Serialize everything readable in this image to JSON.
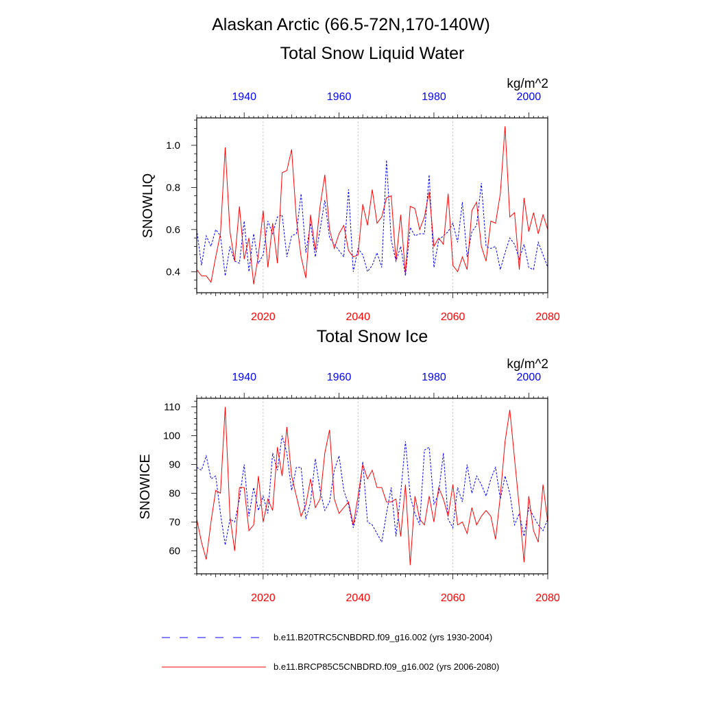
{
  "figure": {
    "title": "Alaskan Arctic (66.5-72N,170-140W)",
    "legend": [
      {
        "label": "b.e11.B20TRC5CNBDRD.f09_g16.002 (yrs 1930-2004)",
        "color": "#0000ff",
        "style": "dashed"
      },
      {
        "label": "b.e11.BRCP85C5CNBDRD.f09_g16.002 (yrs 2006-2080)",
        "color": "#ff0000",
        "style": "solid"
      }
    ],
    "colors": {
      "historical": "#0000ff",
      "future": "#ff0000",
      "frame": "#000000",
      "grid": "#b0b0b0"
    }
  },
  "chart_data": [
    {
      "type": "line",
      "title": "Total Snow Liquid Water",
      "units": "kg/m^2",
      "ylabel": "SNOWLIQ",
      "ylim": [
        0.3,
        1.13
      ],
      "yticks": [
        0.4,
        0.6,
        0.8,
        1.0
      ],
      "ytick_labels": [
        "0.4",
        "0.6",
        "0.8",
        "1.0"
      ],
      "bottom_axis": {
        "xlim": [
          2006,
          2080
        ],
        "ticks": [
          2020,
          2040,
          2060,
          2080
        ],
        "tick_labels": [
          "2020",
          "2040",
          "2060",
          "2080"
        ]
      },
      "top_axis": {
        "xlim": [
          1930,
          2004
        ],
        "ticks": [
          1940,
          1960,
          1980,
          2000
        ],
        "tick_labels": [
          "1940",
          "1960",
          "1980",
          "2000"
        ]
      },
      "grid_x": [
        2020,
        2040,
        2060
      ],
      "series": [
        {
          "name": "b.e11.B20TRC5CNBDRD.f09_g16.002 (yrs 1930-2004)",
          "axis": "top",
          "x_start": 1930,
          "style": "dashed",
          "values": [
            0.6,
            0.43,
            0.57,
            0.52,
            0.6,
            0.57,
            0.38,
            0.52,
            0.45,
            0.44,
            0.64,
            0.4,
            0.58,
            0.44,
            0.48,
            0.64,
            0.58,
            0.66,
            0.67,
            0.47,
            0.57,
            0.58,
            0.77,
            0.49,
            0.63,
            0.47,
            0.6,
            0.74,
            0.56,
            0.53,
            0.5,
            0.47,
            0.79,
            0.4,
            0.51,
            0.48,
            0.4,
            0.43,
            0.49,
            0.42,
            0.93,
            0.55,
            0.45,
            0.52,
            0.38,
            0.61,
            0.57,
            0.58,
            0.58,
            0.86,
            0.42,
            0.55,
            0.57,
            0.59,
            0.63,
            0.54,
            0.73,
            0.47,
            0.59,
            0.62,
            0.82,
            0.52,
            0.51,
            0.52,
            0.41,
            0.49,
            0.56,
            0.53,
            0.46,
            0.53,
            0.42,
            0.41,
            0.54,
            0.48,
            0.42
          ]
        },
        {
          "name": "b.e11.BRCP85C5CNBDRD.f09_g16.002 (yrs 2006-2080)",
          "axis": "bottom",
          "x_start": 2006,
          "style": "solid",
          "values": [
            0.41,
            0.38,
            0.38,
            0.35,
            0.47,
            0.58,
            0.99,
            0.59,
            0.45,
            0.71,
            0.46,
            0.56,
            0.34,
            0.48,
            0.69,
            0.42,
            0.63,
            0.44,
            0.87,
            0.88,
            0.98,
            0.65,
            0.47,
            0.37,
            0.67,
            0.5,
            0.71,
            0.86,
            0.6,
            0.51,
            0.58,
            0.62,
            0.5,
            0.47,
            0.48,
            0.72,
            0.62,
            0.79,
            0.63,
            0.66,
            0.75,
            0.76,
            0.45,
            0.67,
            0.39,
            0.71,
            0.7,
            0.6,
            0.66,
            0.78,
            0.52,
            0.56,
            0.53,
            0.77,
            0.43,
            0.4,
            0.47,
            0.41,
            0.69,
            0.73,
            0.52,
            0.45,
            0.64,
            0.63,
            0.77,
            1.09,
            0.66,
            0.68,
            0.41,
            0.75,
            0.59,
            0.68,
            0.58,
            0.67,
            0.6
          ]
        }
      ]
    },
    {
      "type": "line",
      "title": "Total Snow Ice",
      "units": "kg/m^2",
      "ylabel": "SNOWICE",
      "ylim": [
        52,
        113
      ],
      "yticks": [
        60,
        70,
        80,
        90,
        100,
        110
      ],
      "ytick_labels": [
        "60",
        "70",
        "80",
        "90",
        "100",
        "110"
      ],
      "bottom_axis": {
        "xlim": [
          2006,
          2080
        ],
        "ticks": [
          2020,
          2040,
          2060,
          2080
        ],
        "tick_labels": [
          "2020",
          "2040",
          "2060",
          "2080"
        ]
      },
      "top_axis": {
        "xlim": [
          1930,
          2004
        ],
        "ticks": [
          1940,
          1960,
          1980,
          2000
        ],
        "tick_labels": [
          "1940",
          "1960",
          "1980",
          "2000"
        ]
      },
      "grid_x": [
        2020,
        2040,
        2060
      ],
      "series": [
        {
          "name": "b.e11.B20TRC5CNBDRD.f09_g16.002 (yrs 1930-2004)",
          "axis": "top",
          "x_start": 1930,
          "style": "dashed",
          "values": [
            89,
            88,
            93,
            85,
            86,
            73,
            62,
            71,
            70,
            78,
            90,
            72,
            82,
            74,
            79,
            73,
            94,
            88,
            100,
            94,
            81,
            89,
            89,
            71,
            77,
            92,
            81,
            74,
            77,
            88,
            93,
            81,
            76,
            68,
            75,
            91,
            70,
            69,
            66,
            63,
            73,
            82,
            65,
            80,
            98,
            79,
            73,
            69,
            95,
            96,
            76,
            80,
            94,
            71,
            68,
            82,
            77,
            90,
            80,
            86,
            83,
            79,
            85,
            89,
            78,
            86,
            80,
            69,
            73,
            65,
            75,
            72,
            69,
            67,
            71
          ]
        },
        {
          "name": "b.e11.BRCP85C5CNBDRD.f09_g16.002 (yrs 2006-2080)",
          "axis": "bottom",
          "x_start": 2006,
          "style": "solid",
          "values": [
            71,
            63,
            57,
            70,
            81,
            80,
            110,
            72,
            60,
            82,
            82,
            67,
            69,
            86,
            70,
            78,
            74,
            96,
            86,
            103,
            86,
            79,
            72,
            76,
            85,
            75,
            78,
            94,
            102,
            78,
            73,
            75,
            77,
            69,
            79,
            90,
            85,
            88,
            82,
            82,
            77,
            77,
            78,
            65,
            83,
            55,
            79,
            71,
            69,
            79,
            70,
            82,
            78,
            72,
            83,
            69,
            70,
            66,
            75,
            69,
            72,
            74,
            72,
            64,
            79,
            98,
            109,
            92,
            75,
            56,
            79,
            67,
            63,
            83,
            70
          ]
        }
      ]
    }
  ]
}
